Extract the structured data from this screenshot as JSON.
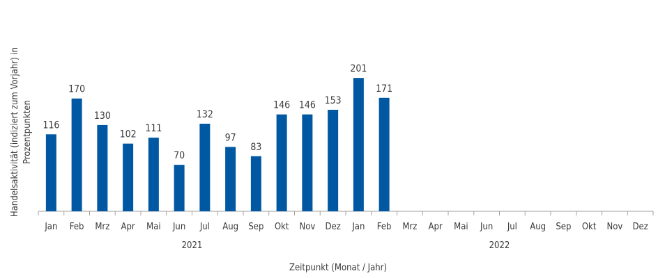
{
  "chart_data": {
    "type": "bar",
    "title": "",
    "xlabel": "Zeitpunkt (Monat / Jahr)",
    "ylabel": [
      "Handelsaktivität (indiziert zum Vorjahr) in",
      "Prozentpunkten"
    ],
    "ylim": [
      0,
      220
    ],
    "grid": false,
    "color": "#0058a3",
    "groups": [
      {
        "year": "2021",
        "categories": [
          "Jan",
          "Feb",
          "Mrz",
          "Apr",
          "Mai",
          "Jun",
          "Jul",
          "Aug",
          "Sep",
          "Okt",
          "Nov",
          "Dez"
        ],
        "values": [
          116,
          170,
          130,
          102,
          111,
          70,
          132,
          97,
          83,
          146,
          146,
          153
        ]
      },
      {
        "year": "2022",
        "categories": [
          "Jan",
          "Feb",
          "Mrz",
          "Apr",
          "Mai",
          "Jun",
          "Jul",
          "Aug",
          "Sep",
          "Okt",
          "Nov",
          "Dez"
        ],
        "values": [
          201,
          171,
          null,
          null,
          null,
          null,
          null,
          null,
          null,
          null,
          null,
          null
        ]
      }
    ]
  }
}
